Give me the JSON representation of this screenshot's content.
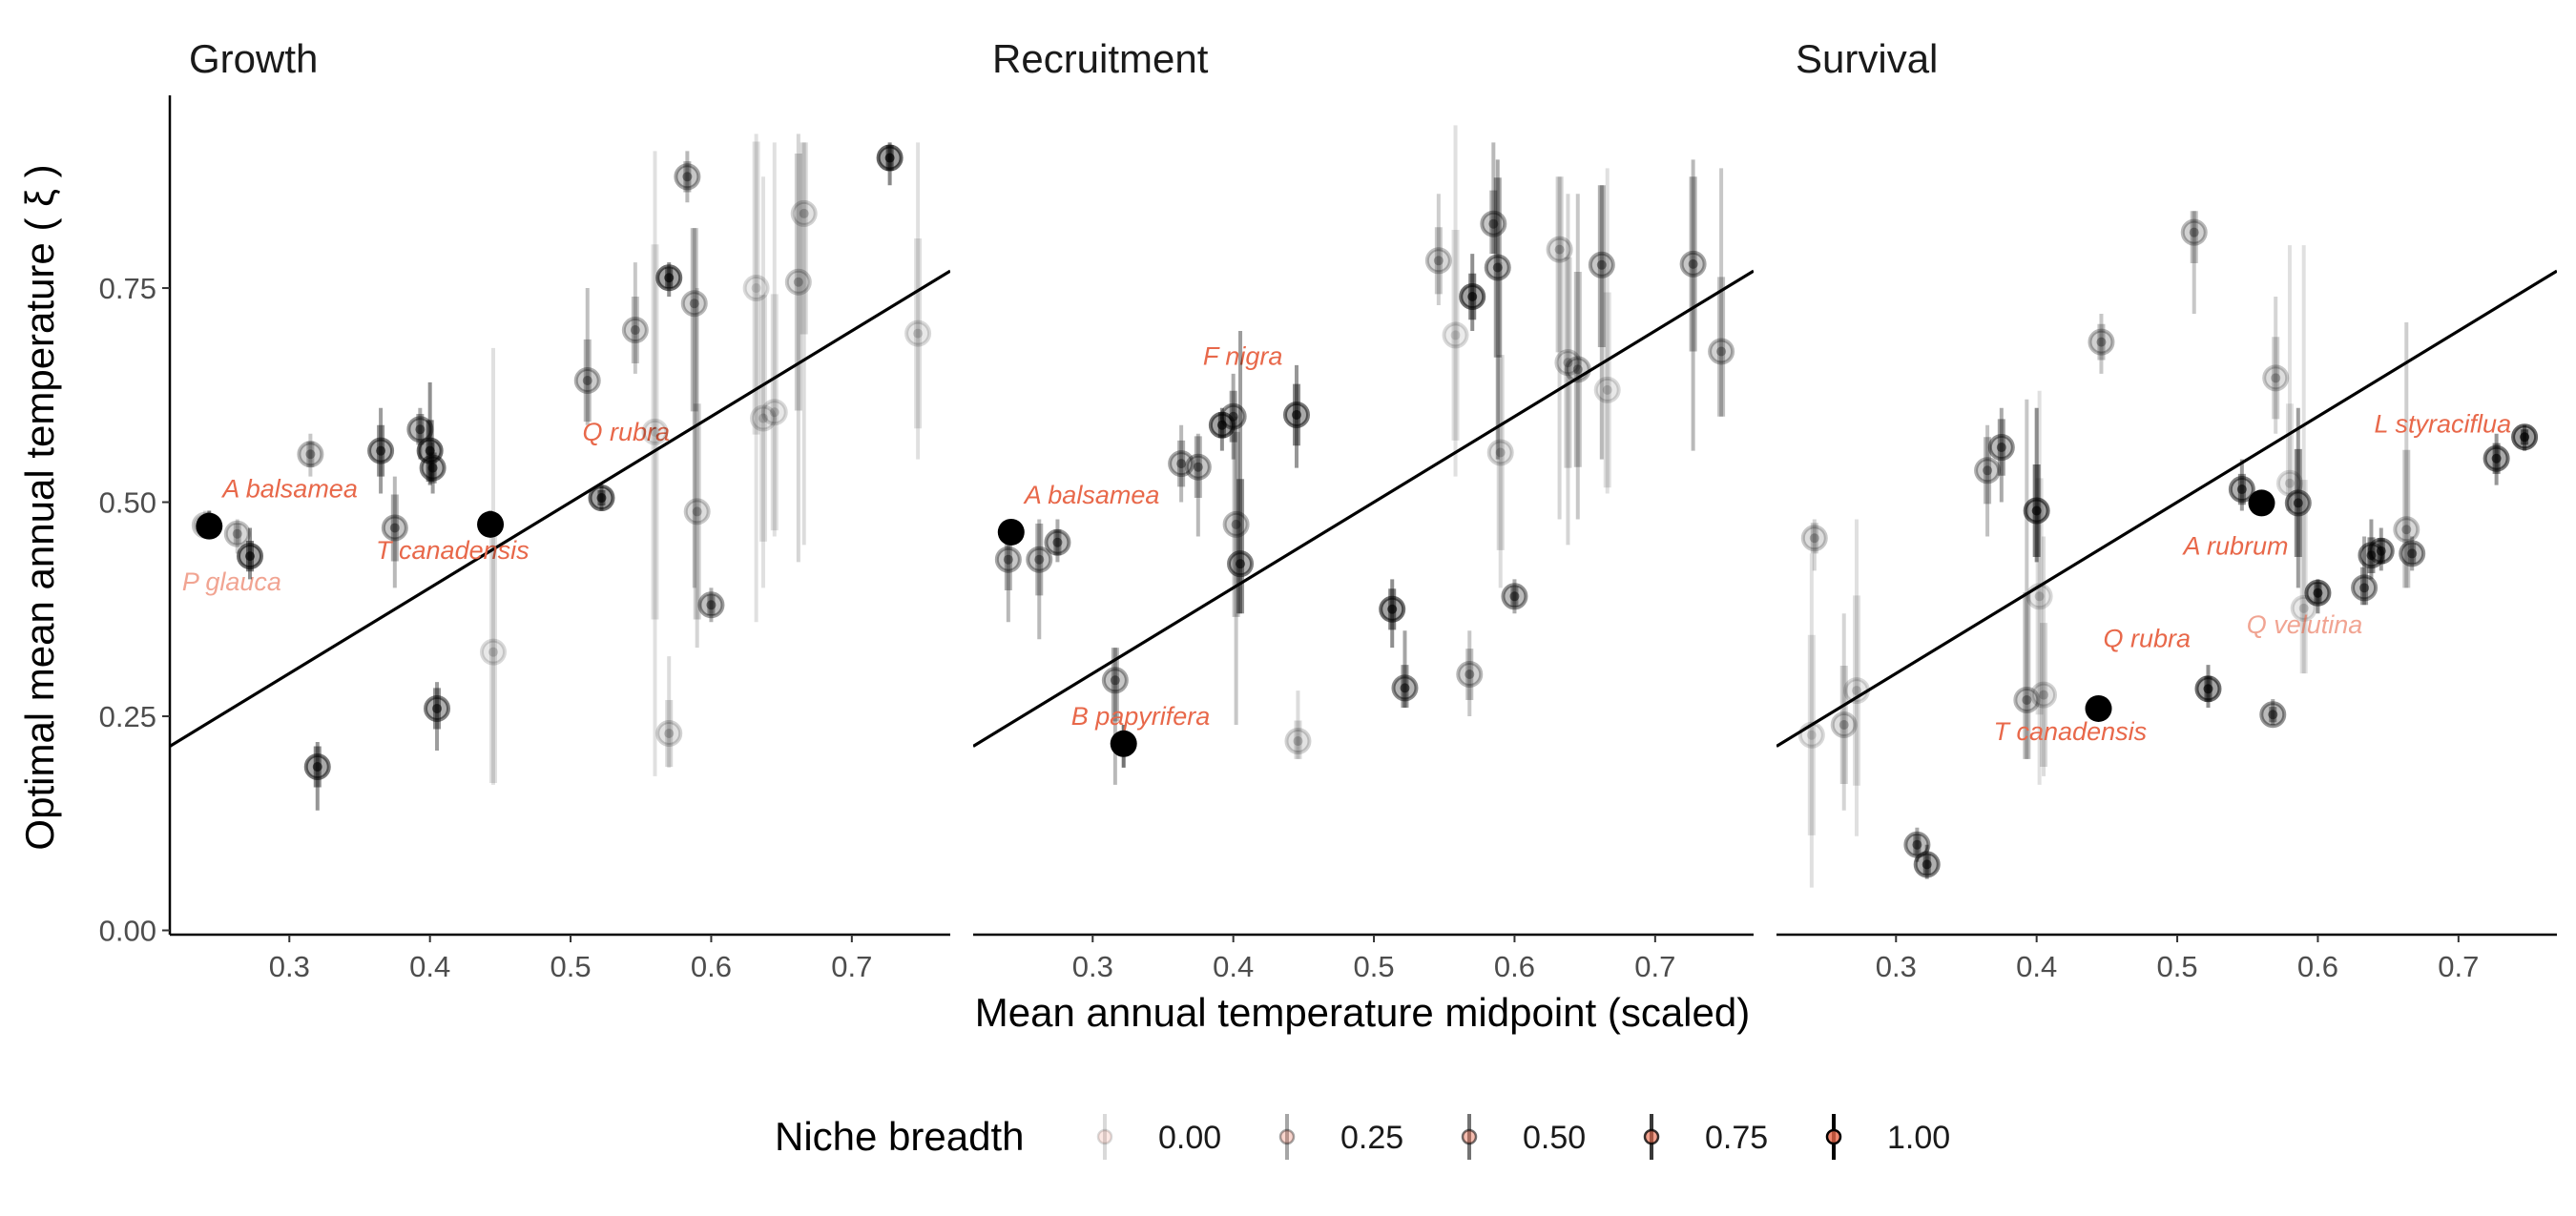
{
  "chart_data": {
    "type": "scatter",
    "xlabel": "Mean annual temperature midpoint (scaled)",
    "ylabel": "Optimal mean annual temperature ( ξ )",
    "xlim": [
      0.215,
      0.77
    ],
    "ylim": [
      -0.005,
      0.975
    ],
    "x_ticks": [
      "0.3",
      "0.4",
      "0.5",
      "0.6",
      "0.7"
    ],
    "x_tick_values": [
      0.3,
      0.4,
      0.5,
      0.6,
      0.7
    ],
    "y_ticks": [
      "0.00",
      "0.25",
      "0.50",
      "0.75"
    ],
    "y_tick_values": [
      0.0,
      0.25,
      0.5,
      0.75
    ],
    "legend": {
      "title": "Niche breadth",
      "position": "bottom",
      "entries": [
        {
          "label": "0.00",
          "alpha": 0.15
        },
        {
          "label": "0.25",
          "alpha": 0.35
        },
        {
          "label": "0.50",
          "alpha": 0.55
        },
        {
          "label": "0.75",
          "alpha": 0.78
        },
        {
          "label": "1.00",
          "alpha": 1.0
        }
      ]
    },
    "colors": {
      "points": "#000000",
      "fit_line": "#000000",
      "label": "#e8684a"
    },
    "panels": [
      {
        "title": "Growth",
        "fit_line": {
          "intercept": 0.0,
          "slope": 1.0
        },
        "points": [
          {
            "x": 0.24,
            "y": 0.473,
            "lo": 0.46,
            "hi": 0.49,
            "b": 0.3,
            "label": "P glauca"
          },
          {
            "x": 0.243,
            "y": 0.472,
            "lo": 0.46,
            "hi": 0.49,
            "b": 1.0,
            "label": "A balsamea"
          },
          {
            "x": 0.263,
            "y": 0.463,
            "lo": 0.44,
            "hi": 0.48,
            "b": 0.35
          },
          {
            "x": 0.272,
            "y": 0.437,
            "lo": 0.41,
            "hi": 0.47,
            "b": 0.8
          },
          {
            "x": 0.315,
            "y": 0.556,
            "lo": 0.53,
            "hi": 0.58,
            "b": 0.4
          },
          {
            "x": 0.32,
            "y": 0.191,
            "lo": 0.14,
            "hi": 0.22,
            "b": 0.75
          },
          {
            "x": 0.365,
            "y": 0.56,
            "lo": 0.51,
            "hi": 0.61,
            "b": 0.7
          },
          {
            "x": 0.375,
            "y": 0.47,
            "lo": 0.4,
            "hi": 0.53,
            "b": 0.5
          },
          {
            "x": 0.393,
            "y": 0.585,
            "lo": 0.55,
            "hi": 0.61,
            "b": 0.6
          },
          {
            "x": 0.4,
            "y": 0.56,
            "lo": 0.52,
            "hi": 0.64,
            "b": 0.8
          },
          {
            "x": 0.402,
            "y": 0.54,
            "lo": 0.51,
            "hi": 0.57,
            "b": 0.7
          },
          {
            "x": 0.405,
            "y": 0.259,
            "lo": 0.21,
            "hi": 0.29,
            "b": 0.7
          },
          {
            "x": 0.443,
            "y": 0.474,
            "lo": 0.46,
            "hi": 0.49,
            "b": 1.0,
            "label": "T canadensis"
          },
          {
            "x": 0.445,
            "y": 0.325,
            "lo": 0.17,
            "hi": 0.68,
            "b": 0.2
          },
          {
            "x": 0.512,
            "y": 0.642,
            "lo": 0.59,
            "hi": 0.75,
            "b": 0.45
          },
          {
            "x": 0.522,
            "y": 0.505,
            "lo": 0.49,
            "hi": 0.52,
            "b": 0.8,
            "label": "Q rubra"
          },
          {
            "x": 0.546,
            "y": 0.701,
            "lo": 0.65,
            "hi": 0.78,
            "b": 0.4
          },
          {
            "x": 0.56,
            "y": 0.582,
            "lo": 0.18,
            "hi": 0.91,
            "b": 0.15
          },
          {
            "x": 0.57,
            "y": 0.762,
            "lo": 0.74,
            "hi": 0.78,
            "b": 0.8
          },
          {
            "x": 0.57,
            "y": 0.23,
            "lo": 0.19,
            "hi": 0.32,
            "b": 0.25
          },
          {
            "x": 0.583,
            "y": 0.88,
            "lo": 0.85,
            "hi": 0.91,
            "b": 0.5
          },
          {
            "x": 0.588,
            "y": 0.732,
            "lo": 0.4,
            "hi": 0.82,
            "b": 0.4
          },
          {
            "x": 0.59,
            "y": 0.489,
            "lo": 0.33,
            "hi": 0.75,
            "b": 0.3
          },
          {
            "x": 0.6,
            "y": 0.38,
            "lo": 0.36,
            "hi": 0.4,
            "b": 0.55
          },
          {
            "x": 0.632,
            "y": 0.75,
            "lo": 0.36,
            "hi": 0.93,
            "b": 0.15
          },
          {
            "x": 0.637,
            "y": 0.598,
            "lo": 0.4,
            "hi": 0.88,
            "b": 0.2
          },
          {
            "x": 0.645,
            "y": 0.605,
            "lo": 0.46,
            "hi": 0.92,
            "b": 0.2
          },
          {
            "x": 0.662,
            "y": 0.757,
            "lo": 0.43,
            "hi": 0.93,
            "b": 0.3
          },
          {
            "x": 0.666,
            "y": 0.837,
            "lo": 0.45,
            "hi": 0.92,
            "b": 0.25
          },
          {
            "x": 0.727,
            "y": 0.902,
            "lo": 0.87,
            "hi": 0.92,
            "b": 0.85
          },
          {
            "x": 0.747,
            "y": 0.697,
            "lo": 0.55,
            "hi": 0.92,
            "b": 0.2
          }
        ]
      },
      {
        "title": "Recruitment",
        "fit_line": {
          "intercept": 0.0,
          "slope": 1.0
        },
        "points": [
          {
            "x": 0.24,
            "y": 0.433,
            "lo": 0.36,
            "hi": 0.48,
            "b": 0.5
          },
          {
            "x": 0.242,
            "y": 0.465,
            "lo": 0.45,
            "hi": 0.48,
            "b": 1.0,
            "label": "A balsamea"
          },
          {
            "x": 0.262,
            "y": 0.433,
            "lo": 0.34,
            "hi": 0.48,
            "b": 0.5
          },
          {
            "x": 0.275,
            "y": 0.453,
            "lo": 0.43,
            "hi": 0.48,
            "b": 0.6
          },
          {
            "x": 0.316,
            "y": 0.292,
            "lo": 0.17,
            "hi": 0.33,
            "b": 0.5
          },
          {
            "x": 0.322,
            "y": 0.218,
            "lo": 0.19,
            "hi": 0.24,
            "b": 1.0,
            "label": "B papyrifera"
          },
          {
            "x": 0.363,
            "y": 0.545,
            "lo": 0.5,
            "hi": 0.59,
            "b": 0.5
          },
          {
            "x": 0.375,
            "y": 0.541,
            "lo": 0.46,
            "hi": 0.58,
            "b": 0.5
          },
          {
            "x": 0.392,
            "y": 0.59,
            "lo": 0.56,
            "hi": 0.61,
            "b": 0.8,
            "label": "F nigra"
          },
          {
            "x": 0.4,
            "y": 0.6,
            "lo": 0.55,
            "hi": 0.65,
            "b": 0.6
          },
          {
            "x": 0.402,
            "y": 0.474,
            "lo": 0.24,
            "hi": 0.6,
            "b": 0.4
          },
          {
            "x": 0.405,
            "y": 0.428,
            "lo": 0.37,
            "hi": 0.7,
            "b": 0.7
          },
          {
            "x": 0.445,
            "y": 0.602,
            "lo": 0.54,
            "hi": 0.66,
            "b": 0.75
          },
          {
            "x": 0.446,
            "y": 0.221,
            "lo": 0.2,
            "hi": 0.28,
            "b": 0.25
          },
          {
            "x": 0.513,
            "y": 0.375,
            "lo": 0.33,
            "hi": 0.41,
            "b": 0.8
          },
          {
            "x": 0.522,
            "y": 0.283,
            "lo": 0.26,
            "hi": 0.35,
            "b": 0.65
          },
          {
            "x": 0.546,
            "y": 0.782,
            "lo": 0.73,
            "hi": 0.86,
            "b": 0.35
          },
          {
            "x": 0.558,
            "y": 0.695,
            "lo": 0.53,
            "hi": 0.94,
            "b": 0.15
          },
          {
            "x": 0.568,
            "y": 0.299,
            "lo": 0.25,
            "hi": 0.35,
            "b": 0.4
          },
          {
            "x": 0.57,
            "y": 0.74,
            "lo": 0.7,
            "hi": 0.79,
            "b": 0.8
          },
          {
            "x": 0.585,
            "y": 0.825,
            "lo": 0.79,
            "hi": 0.92,
            "b": 0.5
          },
          {
            "x": 0.588,
            "y": 0.774,
            "lo": 0.55,
            "hi": 0.9,
            "b": 0.6
          },
          {
            "x": 0.59,
            "y": 0.558,
            "lo": 0.4,
            "hi": 0.78,
            "b": 0.25
          },
          {
            "x": 0.6,
            "y": 0.39,
            "lo": 0.37,
            "hi": 0.41,
            "b": 0.6
          },
          {
            "x": 0.632,
            "y": 0.795,
            "lo": 0.48,
            "hi": 0.88,
            "b": 0.3
          },
          {
            "x": 0.638,
            "y": 0.663,
            "lo": 0.45,
            "hi": 0.86,
            "b": 0.3
          },
          {
            "x": 0.645,
            "y": 0.655,
            "lo": 0.48,
            "hi": 0.86,
            "b": 0.4
          },
          {
            "x": 0.662,
            "y": 0.777,
            "lo": 0.55,
            "hi": 0.87,
            "b": 0.5
          },
          {
            "x": 0.666,
            "y": 0.631,
            "lo": 0.51,
            "hi": 0.89,
            "b": 0.2
          },
          {
            "x": 0.727,
            "y": 0.778,
            "lo": 0.56,
            "hi": 0.9,
            "b": 0.5
          },
          {
            "x": 0.747,
            "y": 0.676,
            "lo": 0.6,
            "hi": 0.89,
            "b": 0.4
          }
        ]
      },
      {
        "title": "Survival",
        "fit_line": {
          "intercept": 0.0,
          "slope": 1.0
        },
        "points": [
          {
            "x": 0.24,
            "y": 0.228,
            "lo": 0.05,
            "hi": 0.44,
            "b": 0.15
          },
          {
            "x": 0.242,
            "y": 0.458,
            "lo": 0.42,
            "hi": 0.48,
            "b": 0.3
          },
          {
            "x": 0.263,
            "y": 0.24,
            "lo": 0.14,
            "hi": 0.37,
            "b": 0.3
          },
          {
            "x": 0.272,
            "y": 0.28,
            "lo": 0.11,
            "hi": 0.48,
            "b": 0.2
          },
          {
            "x": 0.315,
            "y": 0.1,
            "lo": 0.08,
            "hi": 0.12,
            "b": 0.6
          },
          {
            "x": 0.322,
            "y": 0.077,
            "lo": 0.06,
            "hi": 0.1,
            "b": 0.7
          },
          {
            "x": 0.365,
            "y": 0.537,
            "lo": 0.46,
            "hi": 0.59,
            "b": 0.45
          },
          {
            "x": 0.375,
            "y": 0.564,
            "lo": 0.5,
            "hi": 0.61,
            "b": 0.6
          },
          {
            "x": 0.393,
            "y": 0.269,
            "lo": 0.2,
            "hi": 0.62,
            "b": 0.4
          },
          {
            "x": 0.4,
            "y": 0.49,
            "lo": 0.43,
            "hi": 0.61,
            "b": 0.8
          },
          {
            "x": 0.402,
            "y": 0.39,
            "lo": 0.17,
            "hi": 0.63,
            "b": 0.2
          },
          {
            "x": 0.405,
            "y": 0.275,
            "lo": 0.18,
            "hi": 0.46,
            "b": 0.25
          },
          {
            "x": 0.444,
            "y": 0.259,
            "lo": 0.25,
            "hi": 0.27,
            "b": 1.0,
            "label": "T canadensis"
          },
          {
            "x": 0.446,
            "y": 0.687,
            "lo": 0.65,
            "hi": 0.72,
            "b": 0.4
          },
          {
            "x": 0.512,
            "y": 0.815,
            "lo": 0.72,
            "hi": 0.84,
            "b": 0.4
          },
          {
            "x": 0.522,
            "y": 0.282,
            "lo": 0.26,
            "hi": 0.31,
            "b": 0.8,
            "label": "Q rubra"
          },
          {
            "x": 0.546,
            "y": 0.515,
            "lo": 0.49,
            "hi": 0.55,
            "b": 0.7
          },
          {
            "x": 0.56,
            "y": 0.499,
            "lo": 0.49,
            "hi": 0.51,
            "b": 1.0,
            "label": "A rubrum"
          },
          {
            "x": 0.568,
            "y": 0.252,
            "lo": 0.24,
            "hi": 0.27,
            "b": 0.6
          },
          {
            "x": 0.57,
            "y": 0.645,
            "lo": 0.58,
            "hi": 0.74,
            "b": 0.3
          },
          {
            "x": 0.58,
            "y": 0.522,
            "lo": 0.49,
            "hi": 0.8,
            "b": 0.2
          },
          {
            "x": 0.586,
            "y": 0.499,
            "lo": 0.4,
            "hi": 0.61,
            "b": 0.7
          },
          {
            "x": 0.59,
            "y": 0.376,
            "lo": 0.3,
            "hi": 0.8,
            "b": 0.2,
            "label": "Q velutina"
          },
          {
            "x": 0.6,
            "y": 0.394,
            "lo": 0.37,
            "hi": 0.41,
            "b": 0.8
          },
          {
            "x": 0.633,
            "y": 0.4,
            "lo": 0.38,
            "hi": 0.46,
            "b": 0.6
          },
          {
            "x": 0.638,
            "y": 0.438,
            "lo": 0.41,
            "hi": 0.48,
            "b": 0.7
          },
          {
            "x": 0.645,
            "y": 0.443,
            "lo": 0.42,
            "hi": 0.47,
            "b": 0.7
          },
          {
            "x": 0.663,
            "y": 0.468,
            "lo": 0.4,
            "hi": 0.71,
            "b": 0.35
          },
          {
            "x": 0.667,
            "y": 0.44,
            "lo": 0.42,
            "hi": 0.46,
            "b": 0.6
          },
          {
            "x": 0.727,
            "y": 0.551,
            "lo": 0.52,
            "hi": 0.58,
            "b": 0.75
          },
          {
            "x": 0.747,
            "y": 0.576,
            "lo": 0.56,
            "hi": 0.59,
            "b": 0.85,
            "label": "L styraciflua"
          }
        ]
      }
    ]
  }
}
